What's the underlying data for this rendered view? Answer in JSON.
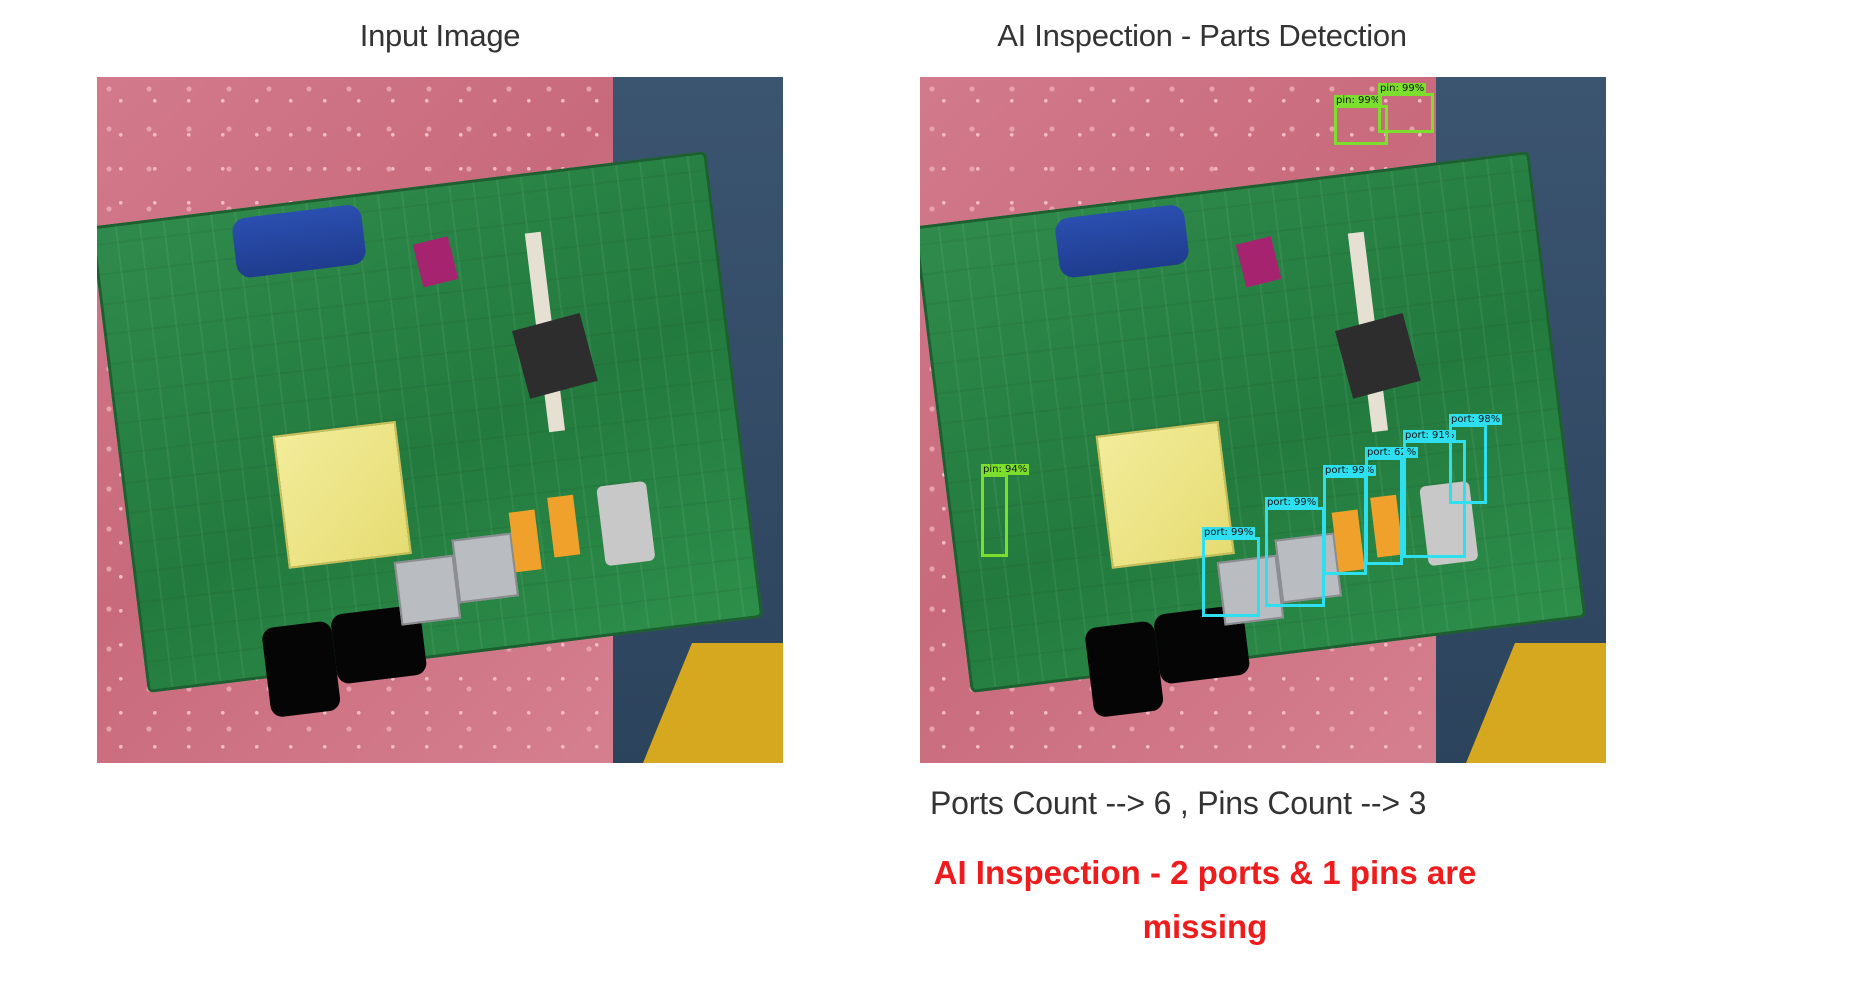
{
  "left_panel": {
    "title": "Input Image"
  },
  "right_panel": {
    "title": "AI Inspection - Parts Detection"
  },
  "detections": [
    {
      "class": "pin",
      "confidence": "pin: 99%"
    },
    {
      "class": "pin",
      "confidence": "pin: 99%"
    },
    {
      "class": "pin",
      "confidence": "pin: 94%"
    },
    {
      "class": "port",
      "confidence": "port: 99%"
    },
    {
      "class": "port",
      "confidence": "port: 99%"
    },
    {
      "class": "port",
      "confidence": "port: 99%"
    },
    {
      "class": "port",
      "confidence": "port: 62%"
    },
    {
      "class": "port",
      "confidence": "port: 91%"
    },
    {
      "class": "port",
      "confidence": "port: 98%"
    }
  ],
  "summary": {
    "ports_label": "Ports Count --> ",
    "ports_count": "6",
    "separator": " , ",
    "pins_label": "Pins Count --> ",
    "pins_count": "3"
  },
  "verdict": "AI Inspection - 2 ports & 1 pins are missing",
  "colors": {
    "pin_box": "#7cdf2e",
    "port_box": "#2ee0ef",
    "verdict_text": "#ee1c1c"
  }
}
